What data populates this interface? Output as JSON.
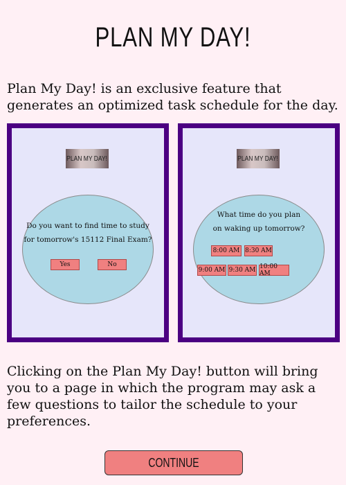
{
  "header": {
    "title": "PLAN MY DAY!"
  },
  "intro": "Plan My Day! is an exclusive feature that generates an optimized task schedule for the day.",
  "panels": {
    "left": {
      "banner": "PLAN MY DAY!",
      "question_line1": "Do you want to find time to study",
      "question_line2": "for tomorrow's 15112 Final Exam?",
      "yes_label": "Yes",
      "no_label": "No"
    },
    "right": {
      "banner": "PLAN MY DAY!",
      "question_line1": "What time do you plan",
      "question_line2": "on waking up tomorrow?",
      "times": [
        "8:00 AM",
        "8:30 AM",
        "9:00 AM",
        "9:30 AM",
        "10:00 AM"
      ]
    }
  },
  "description": "Clicking on the Plan My Day! button will bring you to a page in which the program may ask a few questions to tailor the schedule to your preferences.",
  "continue_label": "CONTINUE",
  "colors": {
    "background": "#fff0f5",
    "panel_border": "#4b0082",
    "panel_fill": "#e6e6fa",
    "circle_fill": "#add8e6",
    "button_fill": "#f08080"
  }
}
